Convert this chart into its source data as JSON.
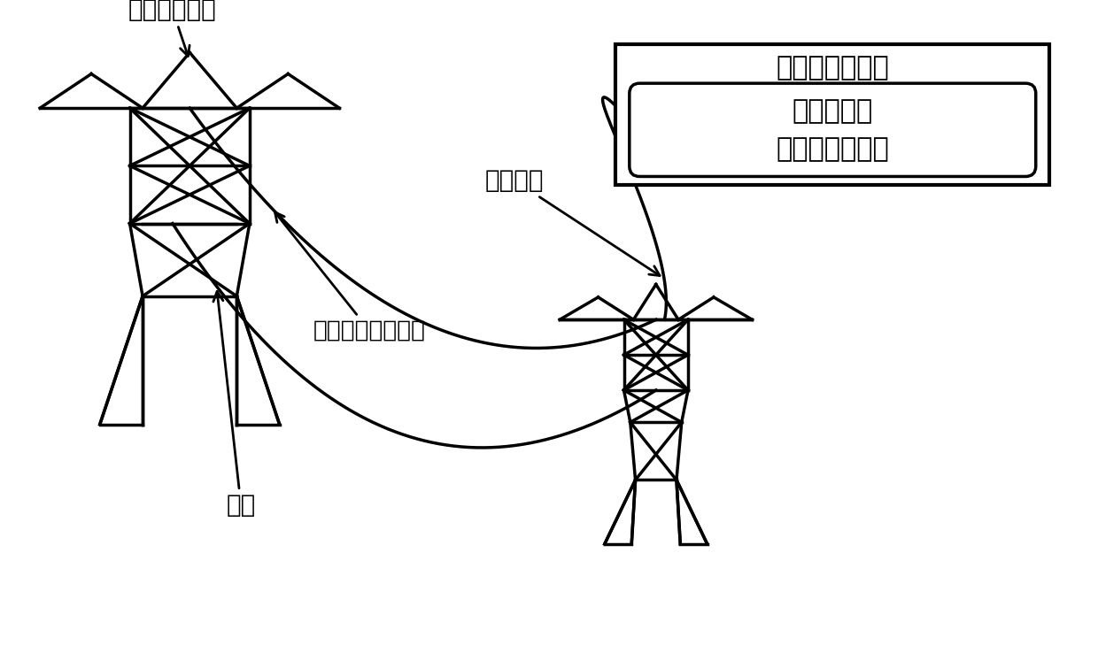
{
  "bg_color": "#ffffff",
  "line_color": "#000000",
  "lw": 2.5,
  "label_tower1": "输电线路杆塔",
  "label_opgw": "光纤复合架空地线",
  "label_conductor": "导线",
  "label_jumper": "光纤跳线",
  "label_box_outer": "变电站通信机房",
  "label_box_inner": "相位敏感型\n光时域反射系统",
  "font_size": 20,
  "font_size_inner": 22
}
